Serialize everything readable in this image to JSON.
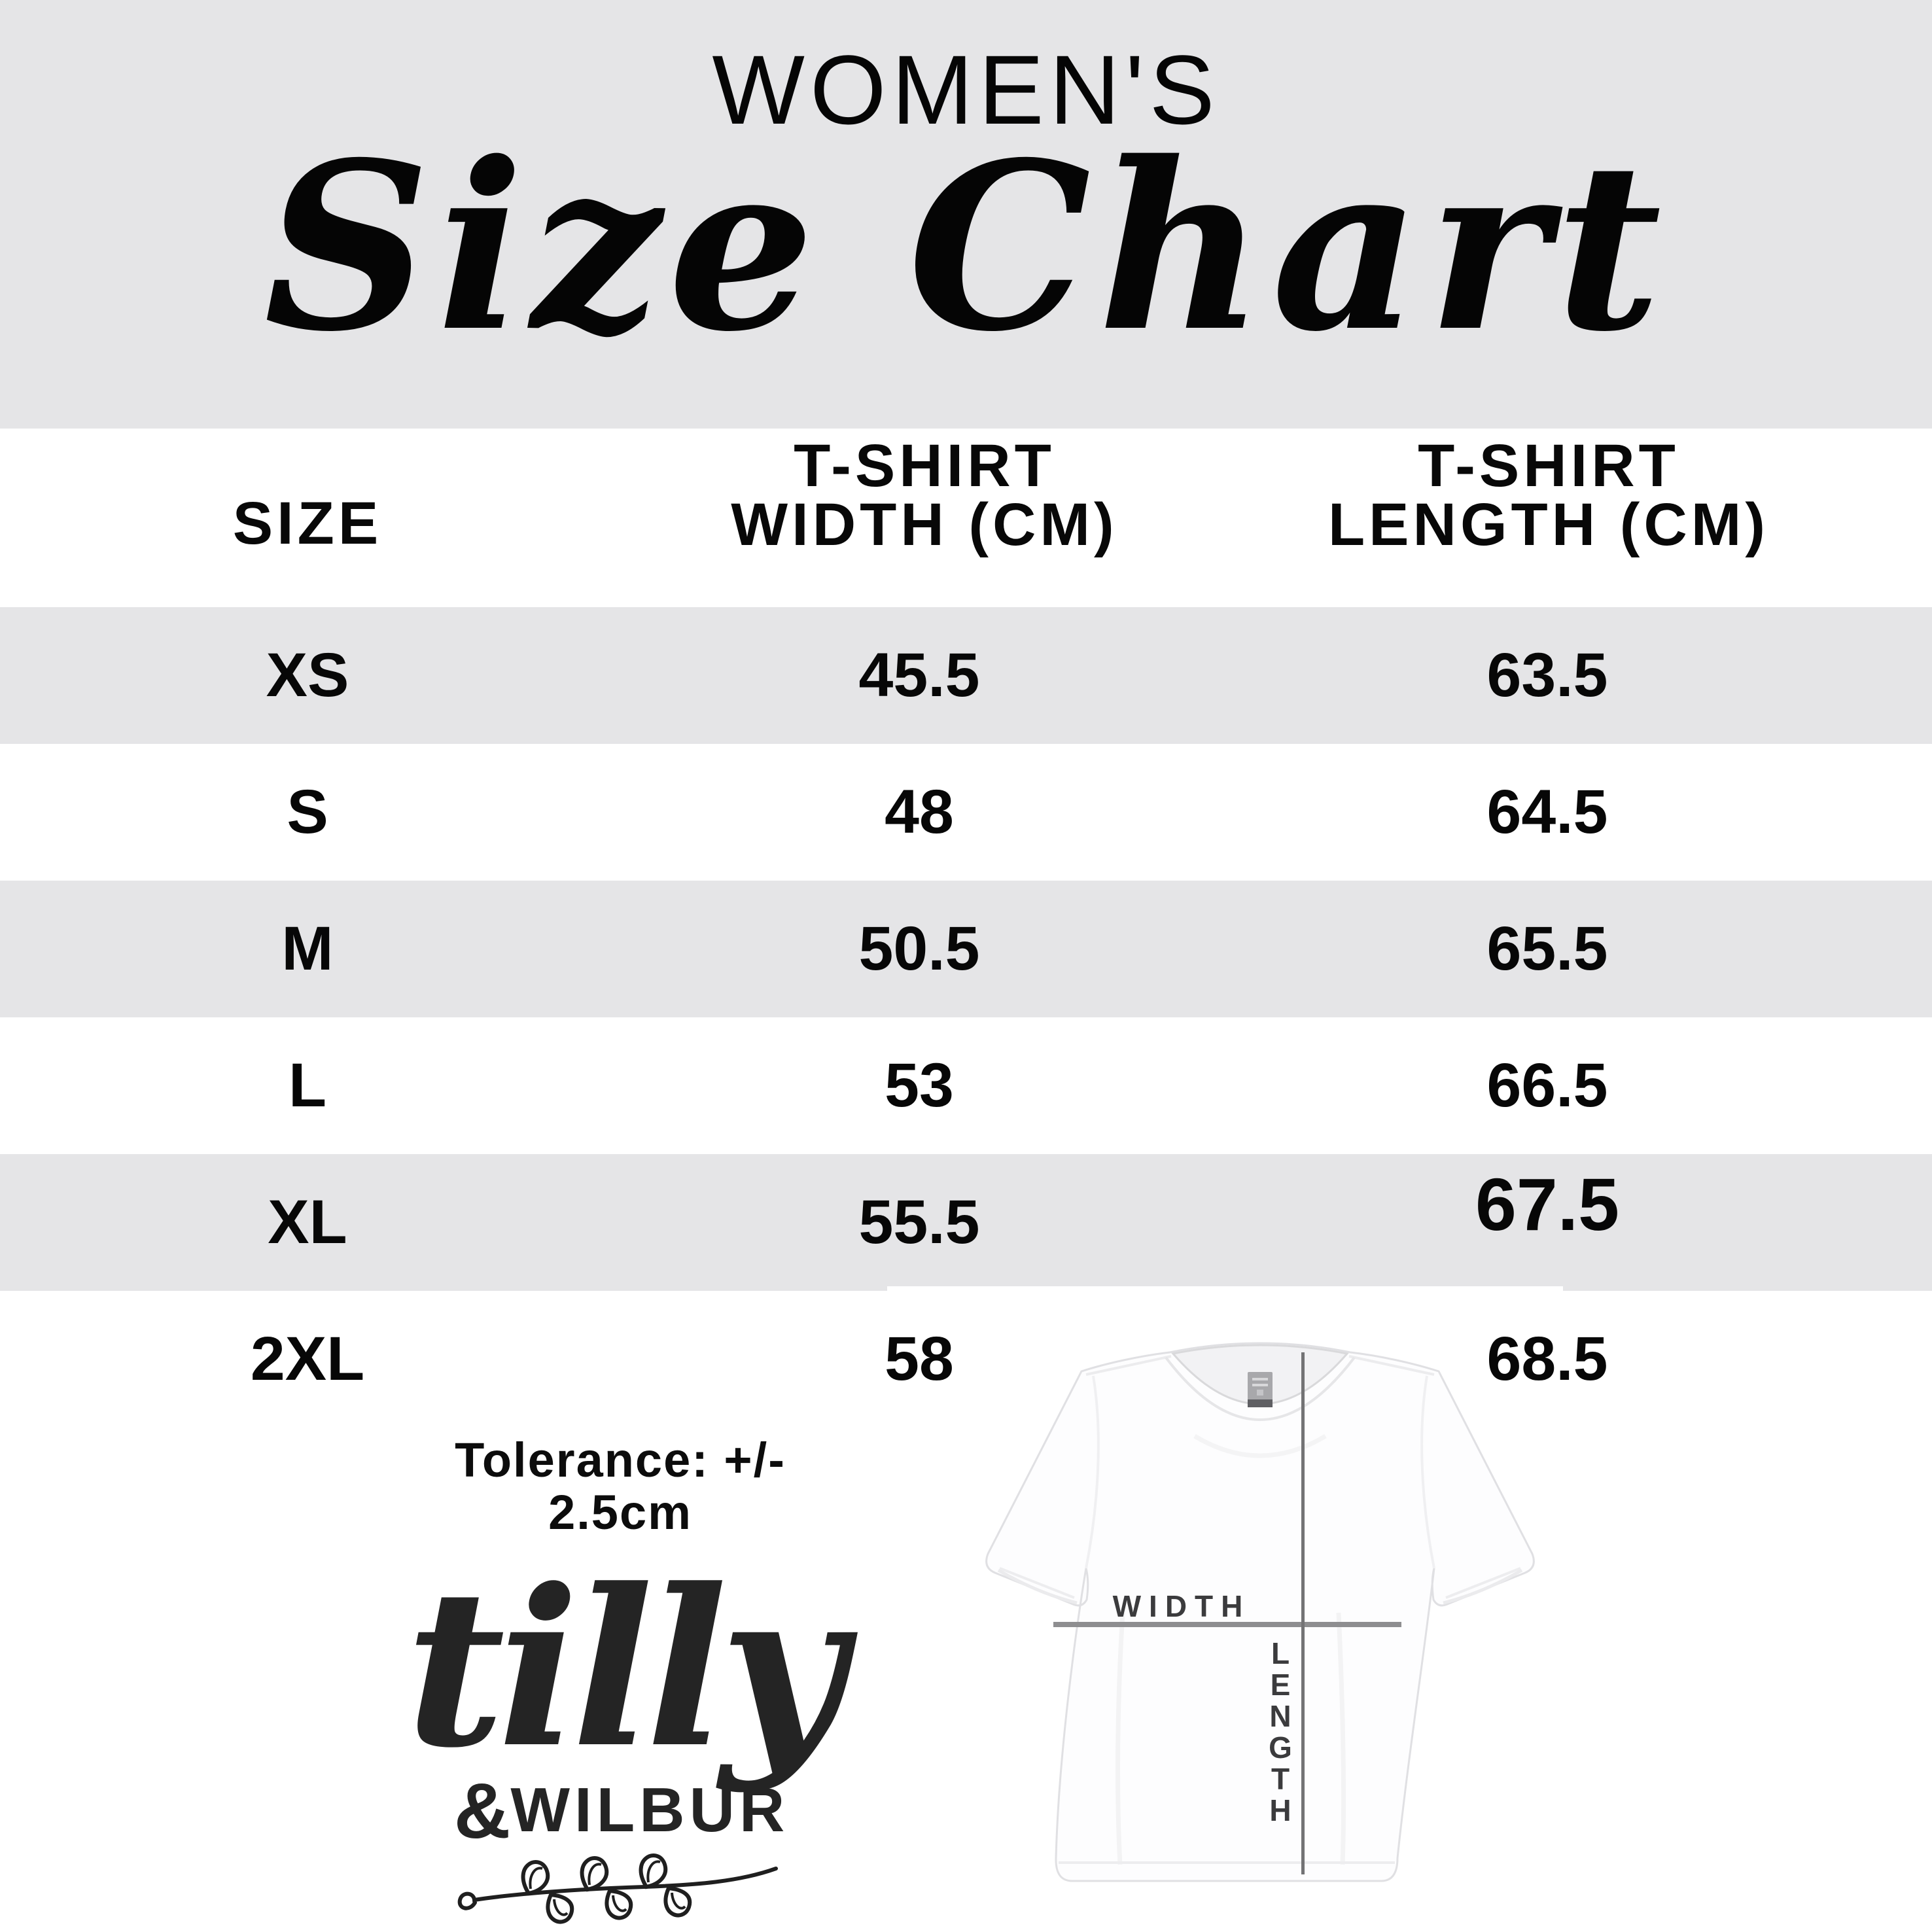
{
  "title": {
    "category": "WOMEN'S",
    "main": "Size Chart"
  },
  "table": {
    "header": {
      "size": "SIZE",
      "width_line1": "T-SHIRT",
      "width_line2": "WIDTH (CM)",
      "length_line1": "T-SHIRT",
      "length_line2": "LENGTH (CM)"
    },
    "rows": [
      {
        "size": "XS",
        "width_cm": "45.5",
        "length_cm": "63.5"
      },
      {
        "size": "S",
        "width_cm": "48",
        "length_cm": "64.5"
      },
      {
        "size": "M",
        "width_cm": "50.5",
        "length_cm": "65.5"
      },
      {
        "size": "L",
        "width_cm": "53",
        "length_cm": "66.5"
      },
      {
        "size": "XL",
        "width_cm": "55.5",
        "length_cm": "67.5"
      },
      {
        "size": "2XL",
        "width_cm": "58",
        "length_cm": "68.5"
      }
    ]
  },
  "tolerance_note": "Tolerance: +/- 2.5cm",
  "logo": {
    "name_script": "tilly",
    "ampersand": "&",
    "name_caps": "WILBUR"
  },
  "diagram": {
    "width_label": "WIDTH",
    "length_label": "LENGTH"
  },
  "colors": {
    "band_gray": "#e5e5e7",
    "row_gray": "#e5e5e7",
    "ink": "#0a0a0a",
    "measure_line": "#8e8e90",
    "measure_line_vertical": "#737375",
    "diagram_label": "#3b3b3d"
  }
}
